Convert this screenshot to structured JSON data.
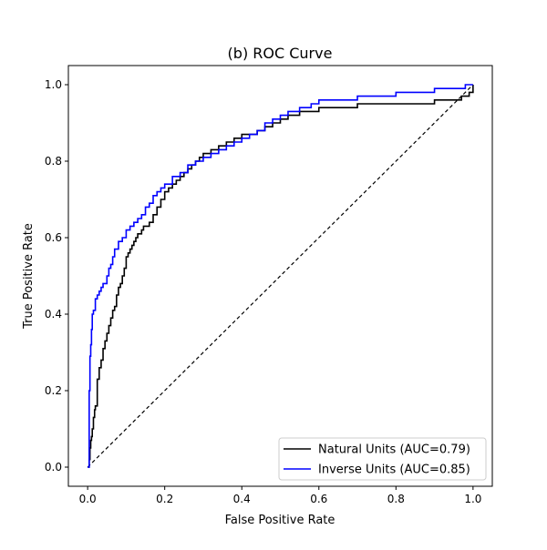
{
  "chart_data": {
    "type": "line",
    "title": "(b) ROC Curve",
    "xlabel": "False Positive Rate",
    "ylabel": "True Positive Rate",
    "xlim": [
      -0.05,
      1.05
    ],
    "ylim": [
      -0.05,
      1.05
    ],
    "xticks": [
      0.0,
      0.2,
      0.4,
      0.6,
      0.8,
      1.0
    ],
    "yticks": [
      0.0,
      0.2,
      0.4,
      0.6,
      0.8,
      1.0
    ],
    "xtick_labels": [
      "0.0",
      "0.2",
      "0.4",
      "0.6",
      "0.8",
      "1.0"
    ],
    "ytick_labels": [
      "0.0",
      "0.2",
      "0.4",
      "0.6",
      "0.8",
      "1.0"
    ],
    "grid": false,
    "legend_position": "lower-right",
    "series": [
      {
        "name": "Natural Units (AUC=0.79)",
        "color": "#000000",
        "x": [
          0.0,
          0.004,
          0.006,
          0.008,
          0.01,
          0.012,
          0.015,
          0.018,
          0.02,
          0.025,
          0.03,
          0.035,
          0.04,
          0.045,
          0.05,
          0.055,
          0.06,
          0.065,
          0.07,
          0.075,
          0.08,
          0.085,
          0.09,
          0.095,
          0.1,
          0.105,
          0.11,
          0.115,
          0.12,
          0.125,
          0.13,
          0.135,
          0.14,
          0.145,
          0.15,
          0.16,
          0.17,
          0.18,
          0.19,
          0.2,
          0.21,
          0.22,
          0.23,
          0.24,
          0.25,
          0.26,
          0.27,
          0.28,
          0.29,
          0.3,
          0.32,
          0.34,
          0.36,
          0.38,
          0.4,
          0.42,
          0.44,
          0.46,
          0.48,
          0.5,
          0.52,
          0.55,
          0.58,
          0.6,
          0.62,
          0.65,
          0.68,
          0.7,
          0.75,
          0.8,
          0.85,
          0.9,
          0.93,
          0.95,
          0.97,
          0.98,
          0.99,
          1.0
        ],
        "y": [
          0.0,
          0.02,
          0.05,
          0.07,
          0.08,
          0.1,
          0.13,
          0.15,
          0.16,
          0.23,
          0.26,
          0.28,
          0.31,
          0.33,
          0.35,
          0.37,
          0.39,
          0.41,
          0.42,
          0.45,
          0.47,
          0.48,
          0.5,
          0.52,
          0.55,
          0.56,
          0.57,
          0.58,
          0.59,
          0.6,
          0.61,
          0.61,
          0.62,
          0.63,
          0.63,
          0.64,
          0.66,
          0.68,
          0.7,
          0.72,
          0.73,
          0.74,
          0.75,
          0.76,
          0.77,
          0.78,
          0.79,
          0.8,
          0.81,
          0.82,
          0.83,
          0.84,
          0.85,
          0.86,
          0.87,
          0.87,
          0.88,
          0.89,
          0.9,
          0.91,
          0.92,
          0.93,
          0.93,
          0.94,
          0.94,
          0.94,
          0.94,
          0.95,
          0.95,
          0.95,
          0.95,
          0.96,
          0.96,
          0.96,
          0.97,
          0.97,
          0.98,
          1.0
        ]
      },
      {
        "name": "Inverse Units (AUC=0.85)",
        "color": "#0000ff",
        "x": [
          0.0,
          0.004,
          0.006,
          0.008,
          0.01,
          0.012,
          0.015,
          0.02,
          0.025,
          0.03,
          0.035,
          0.04,
          0.05,
          0.055,
          0.06,
          0.065,
          0.07,
          0.08,
          0.09,
          0.1,
          0.11,
          0.12,
          0.13,
          0.14,
          0.15,
          0.16,
          0.17,
          0.18,
          0.19,
          0.2,
          0.22,
          0.24,
          0.26,
          0.28,
          0.3,
          0.32,
          0.34,
          0.36,
          0.38,
          0.4,
          0.42,
          0.44,
          0.46,
          0.48,
          0.5,
          0.52,
          0.55,
          0.58,
          0.6,
          0.65,
          0.7,
          0.75,
          0.8,
          0.85,
          0.9,
          0.95,
          0.98,
          1.0
        ],
        "y": [
          0.0,
          0.2,
          0.29,
          0.32,
          0.36,
          0.4,
          0.41,
          0.44,
          0.45,
          0.46,
          0.47,
          0.48,
          0.5,
          0.52,
          0.53,
          0.55,
          0.57,
          0.59,
          0.6,
          0.62,
          0.63,
          0.64,
          0.65,
          0.66,
          0.68,
          0.69,
          0.71,
          0.72,
          0.73,
          0.74,
          0.76,
          0.77,
          0.79,
          0.8,
          0.81,
          0.82,
          0.83,
          0.84,
          0.85,
          0.86,
          0.87,
          0.88,
          0.9,
          0.91,
          0.92,
          0.93,
          0.94,
          0.95,
          0.96,
          0.96,
          0.97,
          0.97,
          0.98,
          0.98,
          0.99,
          0.99,
          1.0,
          1.0
        ]
      }
    ],
    "reference_line": {
      "x": [
        0,
        1
      ],
      "y": [
        0,
        1
      ],
      "style": "dashed",
      "color": "#000000"
    }
  }
}
